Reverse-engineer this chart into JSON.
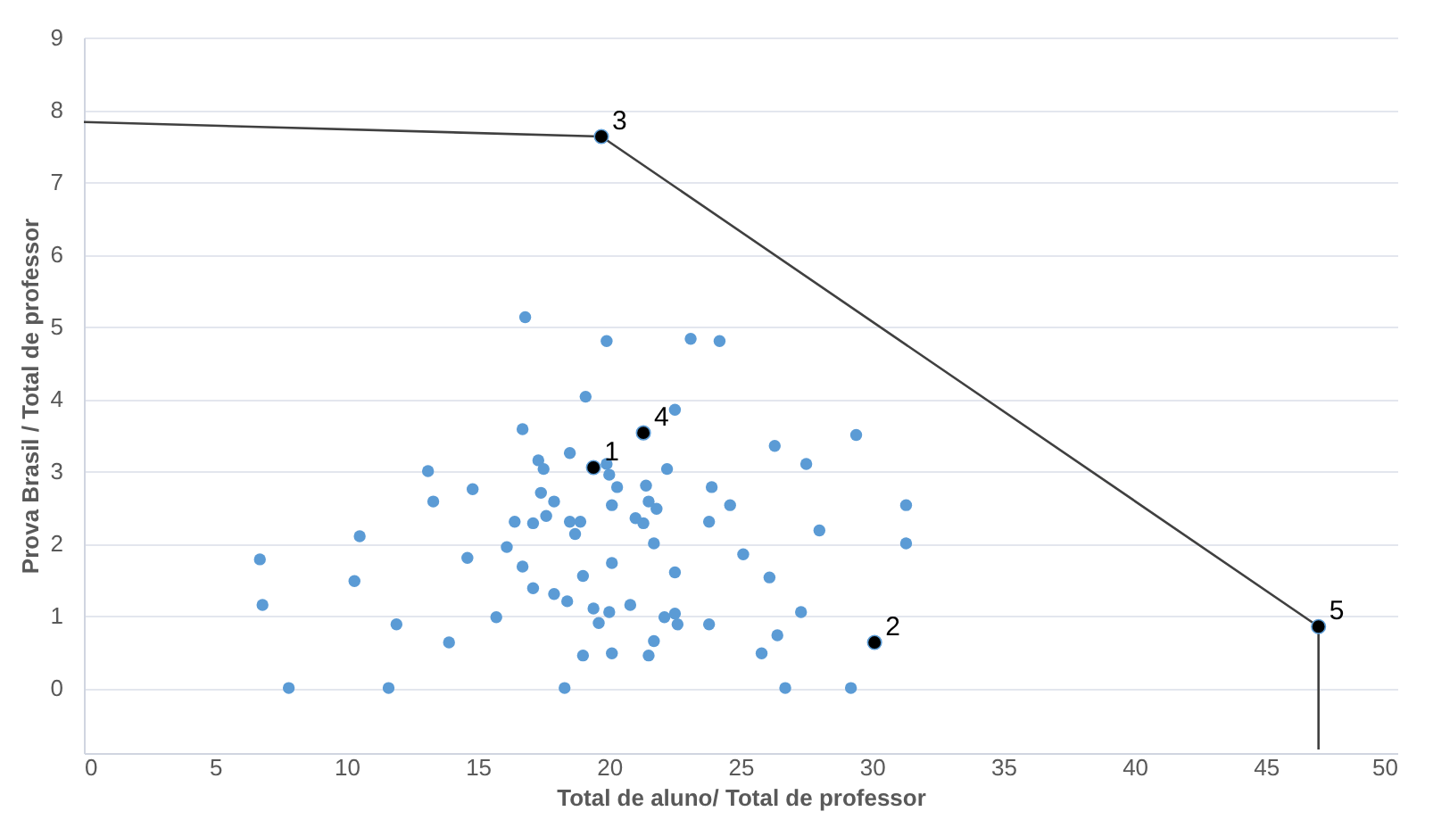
{
  "chart_data": {
    "type": "scatter",
    "xlabel": "Total de aluno/ Total de professor",
    "ylabel": "Prova Brasil / Total de professor",
    "xlim": [
      0,
      50
    ],
    "xticks": [
      0,
      5,
      10,
      15,
      20,
      25,
      30,
      35,
      40,
      45,
      50
    ],
    "ylim": [
      -0.9,
      9
    ],
    "yticks": [
      0,
      1,
      2,
      3,
      4,
      5,
      6,
      7,
      8,
      9
    ],
    "grid": "y",
    "legend": false,
    "marker": "circle",
    "series": [
      {
        "type": "scatter",
        "color": "#5b9bd5",
        "x": [
          6.7,
          6.8,
          7.8,
          10.5,
          10.3,
          11.9,
          11.6,
          13.1,
          13.3,
          14.8,
          14.6,
          13.9,
          15.7,
          16.8,
          16.7,
          16.1,
          16.4,
          16.7,
          17.1,
          17.3,
          17.5,
          17.1,
          19.9,
          23.1,
          24.2,
          19.1,
          22.5,
          26.3,
          29.4,
          27.5,
          18.5,
          19.9,
          20.0,
          20.3,
          22.2,
          17.4,
          17.9,
          20.1,
          21.4,
          21.5,
          21.8,
          23.9,
          24.6,
          17.6,
          18.5,
          18.9,
          18.7,
          21.0,
          21.3,
          23.8,
          28.0,
          31.3,
          31.3,
          21.7,
          25.1,
          20.1,
          19.0,
          22.5,
          26.1,
          17.9,
          18.4,
          19.4,
          20.0,
          19.6,
          20.8,
          22.1,
          22.5,
          22.6,
          23.8,
          27.3,
          26.4,
          21.7,
          19.0,
          20.1,
          21.5,
          25.8,
          18.3,
          26.7,
          29.2
        ],
        "values": [
          1.78,
          1.15,
          0,
          2.1,
          1.48,
          0.88,
          0,
          3.0,
          2.58,
          2.75,
          1.8,
          0.63,
          0.98,
          5.13,
          3.58,
          1.95,
          2.3,
          1.68,
          2.28,
          3.15,
          3.03,
          1.38,
          4.8,
          4.83,
          4.8,
          4.03,
          3.85,
          3.35,
          3.5,
          3.1,
          3.25,
          3.1,
          2.95,
          2.78,
          3.03,
          2.7,
          2.58,
          2.53,
          2.8,
          2.58,
          2.48,
          2.78,
          2.53,
          2.38,
          2.3,
          2.3,
          2.13,
          2.35,
          2.28,
          2.3,
          2.18,
          2.53,
          2.0,
          2.0,
          1.85,
          1.73,
          1.55,
          1.6,
          1.53,
          1.3,
          1.2,
          1.1,
          1.05,
          0.9,
          1.15,
          0.98,
          1.03,
          0.88,
          0.88,
          1.05,
          0.73,
          0.65,
          0.45,
          0.48,
          0.45,
          0.48,
          0,
          0,
          0
        ]
      },
      {
        "type": "line",
        "color": "#404040",
        "marker": "none",
        "x": [
          0,
          19.7,
          47.0,
          47.0
        ],
        "values": [
          7.83,
          7.63,
          0.85,
          -0.85
        ]
      },
      {
        "type": "scatter",
        "color": "#000000",
        "x": [
          19.4,
          30.1,
          19.7,
          21.3,
          47.0
        ],
        "values": [
          3.05,
          0.63,
          7.63,
          3.53,
          0.85
        ]
      }
    ],
    "annotations": [
      {
        "text": "1",
        "x": 19.4,
        "y": 3.05
      },
      {
        "text": "2",
        "x": 30.1,
        "y": 0.63
      },
      {
        "text": "3",
        "x": 19.7,
        "y": 7.63
      },
      {
        "text": "4",
        "x": 21.3,
        "y": 3.53
      },
      {
        "text": "5",
        "x": 47.0,
        "y": 0.85
      }
    ]
  }
}
